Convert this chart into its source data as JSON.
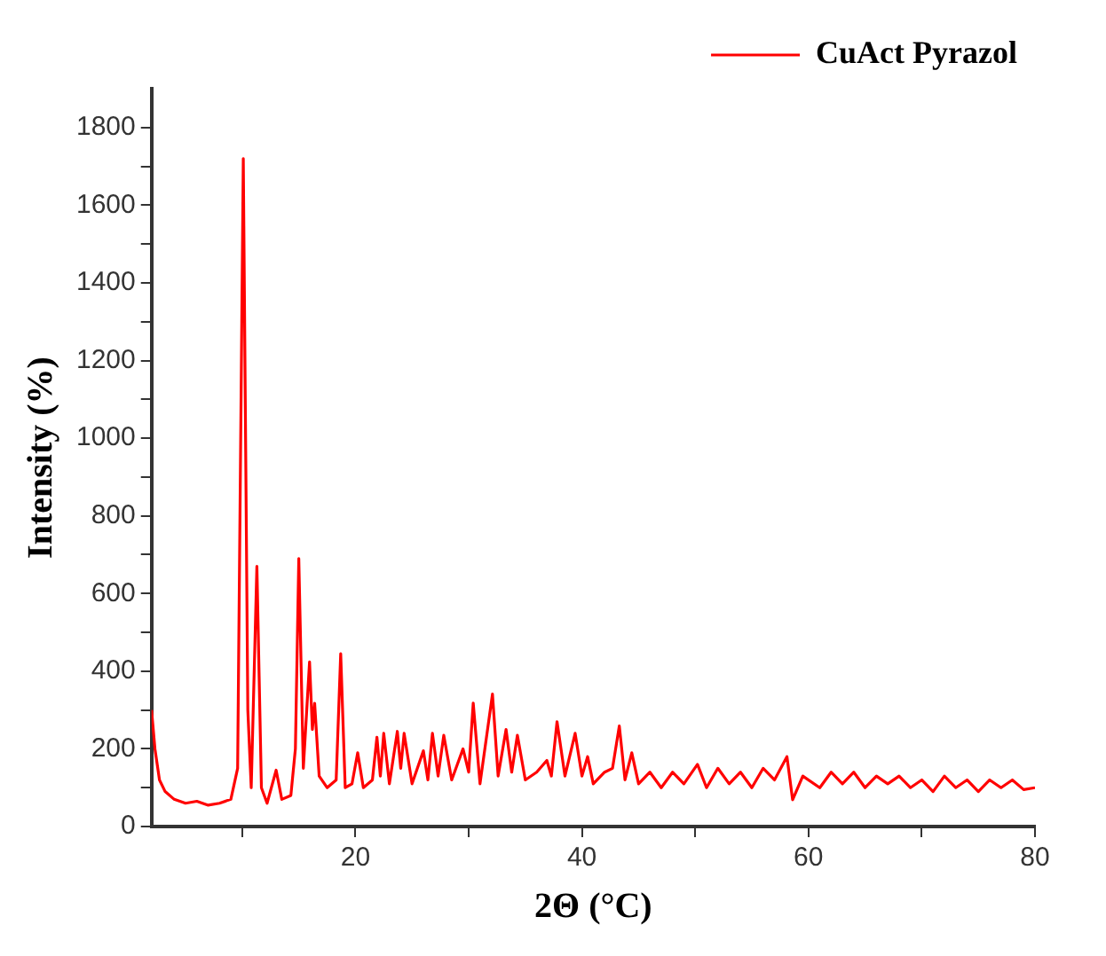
{
  "chart_data": {
    "type": "line",
    "xlabel": "2Θ (°C)",
    "ylabel": "Intensity (%)",
    "legend": "top right",
    "grid": false,
    "marker": "none",
    "line_style": "solid",
    "xlim": [
      2,
      80
    ],
    "ylim": [
      0,
      1900
    ],
    "xticks": [
      {
        "value": 10,
        "label": null
      },
      20,
      {
        "value": 30,
        "label": null
      },
      40,
      {
        "value": 50,
        "label": null
      },
      60,
      {
        "value": 70,
        "label": null
      },
      80
    ],
    "yticks": [
      0,
      {
        "value": 100,
        "label": null
      },
      200,
      {
        "value": 300,
        "label": null
      },
      400,
      {
        "value": 500,
        "label": null
      },
      600,
      {
        "value": 700,
        "label": null
      },
      800,
      {
        "value": 900,
        "label": null
      },
      1000,
      {
        "value": 1100,
        "label": null
      },
      1200,
      {
        "value": 1300,
        "label": null
      },
      1400,
      {
        "value": 1500,
        "label": null
      },
      1600,
      {
        "value": 1700,
        "label": null
      },
      1800
    ],
    "x": [
      2,
      2.3,
      2.7,
      3.2,
      4,
      5,
      6,
      7,
      8,
      9,
      9.6,
      10.1,
      10.5,
      10.8,
      11.3,
      11.7,
      12.2,
      13,
      13.5,
      14.3,
      14.7,
      15,
      15.4,
      15.95,
      16.2,
      16.4,
      16.8,
      17.5,
      18.3,
      18.7,
      19.1,
      19.7,
      20.2,
      20.7,
      21.5,
      21.9,
      22.2,
      22.5,
      23,
      23.7,
      24,
      24.3,
      25,
      26,
      26.4,
      26.8,
      27.3,
      27.8,
      28.5,
      29.5,
      30,
      30.4,
      31,
      32.1,
      32.6,
      33.3,
      33.8,
      34.3,
      35,
      36,
      36.9,
      37.3,
      37.8,
      38.5,
      39.4,
      40,
      40.5,
      41,
      42,
      42.7,
      43.3,
      43.8,
      44.4,
      45,
      46,
      47,
      48,
      49,
      50.2,
      51,
      52,
      53,
      54,
      55,
      56,
      57,
      58.1,
      58.6,
      59.5,
      61,
      62,
      63,
      64,
      65,
      66,
      67,
      68,
      69,
      70,
      71,
      72,
      73,
      74,
      75,
      76,
      77,
      78,
      79,
      80
    ],
    "series": [
      {
        "name": "CuAct Pyrazol",
        "color": "#ff0000",
        "values": [
          300,
          200,
          120,
          90,
          70,
          60,
          65,
          55,
          60,
          70,
          150,
          1720,
          300,
          100,
          670,
          100,
          60,
          145,
          70,
          80,
          200,
          690,
          150,
          424,
          250,
          317,
          130,
          100,
          120,
          445,
          100,
          110,
          190,
          100,
          120,
          230,
          130,
          240,
          110,
          245,
          150,
          240,
          110,
          195,
          120,
          240,
          130,
          235,
          120,
          200,
          140,
          318,
          110,
          341,
          130,
          250,
          140,
          235,
          120,
          140,
          170,
          130,
          270,
          130,
          240,
          130,
          180,
          110,
          140,
          150,
          259,
          120,
          190,
          110,
          140,
          100,
          140,
          110,
          160,
          100,
          150,
          110,
          140,
          100,
          150,
          120,
          180,
          69,
          130,
          100,
          140,
          110,
          140,
          100,
          130,
          110,
          130,
          100,
          120,
          90,
          130,
          100,
          120,
          90,
          120,
          100,
          120,
          95,
          100
        ]
      }
    ]
  }
}
